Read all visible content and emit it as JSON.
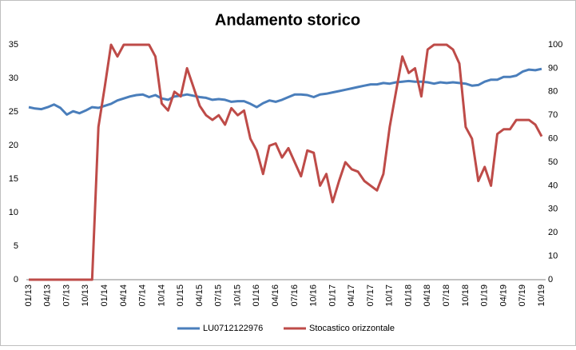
{
  "chart_data": {
    "type": "line",
    "title": "Andamento storico",
    "categories": [
      "01/13",
      null,
      null,
      "04/13",
      null,
      null,
      "07/13",
      null,
      null,
      "10/13",
      null,
      null,
      "01/14",
      null,
      null,
      "04/14",
      null,
      null,
      "07/14",
      null,
      null,
      "10/14",
      null,
      null,
      "01/15",
      null,
      null,
      "04/15",
      null,
      null,
      "07/15",
      null,
      null,
      "10/15",
      null,
      null,
      "01/16",
      null,
      null,
      "04/16",
      null,
      null,
      "07/16",
      null,
      null,
      "10/16",
      null,
      null,
      "01/17",
      null,
      null,
      "04/17",
      null,
      null,
      "07/17",
      null,
      null,
      "10/17",
      null,
      null,
      "01/18",
      null,
      null,
      "04/18",
      null,
      null,
      "07/18",
      null,
      null,
      "10/18",
      null,
      null,
      "01/19",
      null,
      null,
      "04/19",
      null,
      null,
      "07/19",
      null,
      null,
      "10/19"
    ],
    "series": [
      {
        "name": "LU0712122976",
        "color": "#4a7ebb",
        "axis": "y",
        "values": [
          25.7,
          25.5,
          25.4,
          25.7,
          26.1,
          25.6,
          24.6,
          25.1,
          24.8,
          25.2,
          25.7,
          25.6,
          25.9,
          26.2,
          26.7,
          27.0,
          27.3,
          27.5,
          27.6,
          27.2,
          27.5,
          27.0,
          26.8,
          27.3,
          27.4,
          27.6,
          27.4,
          27.2,
          27.1,
          26.8,
          26.9,
          26.8,
          26.5,
          26.6,
          26.6,
          26.2,
          25.7,
          26.3,
          26.7,
          26.5,
          26.8,
          27.2,
          27.6,
          27.6,
          27.5,
          27.2,
          27.6,
          27.7,
          27.9,
          28.1,
          28.3,
          28.5,
          28.7,
          28.9,
          29.1,
          29.1,
          29.3,
          29.2,
          29.4,
          29.5,
          29.6,
          29.5,
          29.5,
          29.4,
          29.2,
          29.4,
          29.3,
          29.4,
          29.3,
          29.2,
          28.9,
          29.0,
          29.5,
          29.8,
          29.8,
          30.2,
          30.2,
          30.4,
          31.0,
          31.3,
          31.2,
          31.4
        ]
      },
      {
        "name": "Stocastico orizzontale",
        "color": "#be4b48",
        "axis": "y2",
        "values": [
          0,
          0,
          0,
          0,
          0,
          0,
          0,
          0,
          0,
          0,
          0,
          65,
          82,
          100,
          95,
          100,
          100,
          100,
          100,
          100,
          95,
          75,
          72,
          80,
          78,
          90,
          82,
          74,
          70,
          68,
          70,
          66,
          73,
          70,
          72,
          60,
          55,
          45,
          57,
          58,
          52,
          56,
          50,
          44,
          55,
          54,
          40,
          45,
          33,
          42,
          50,
          47,
          46,
          42,
          40,
          38,
          45,
          65,
          80,
          95,
          88,
          90,
          78,
          98,
          100,
          100,
          100,
          98,
          92,
          65,
          60,
          42,
          48,
          40,
          62,
          64,
          64,
          68,
          68,
          68,
          66,
          61
        ]
      }
    ],
    "ylim": [
      0,
      35
    ],
    "yticks": [
      0,
      5,
      10,
      15,
      20,
      25,
      30,
      35
    ],
    "y2lim": [
      0,
      100
    ],
    "y2ticks": [
      0,
      10,
      20,
      30,
      40,
      50,
      60,
      70,
      80,
      90,
      100
    ],
    "legend": "bottom"
  }
}
